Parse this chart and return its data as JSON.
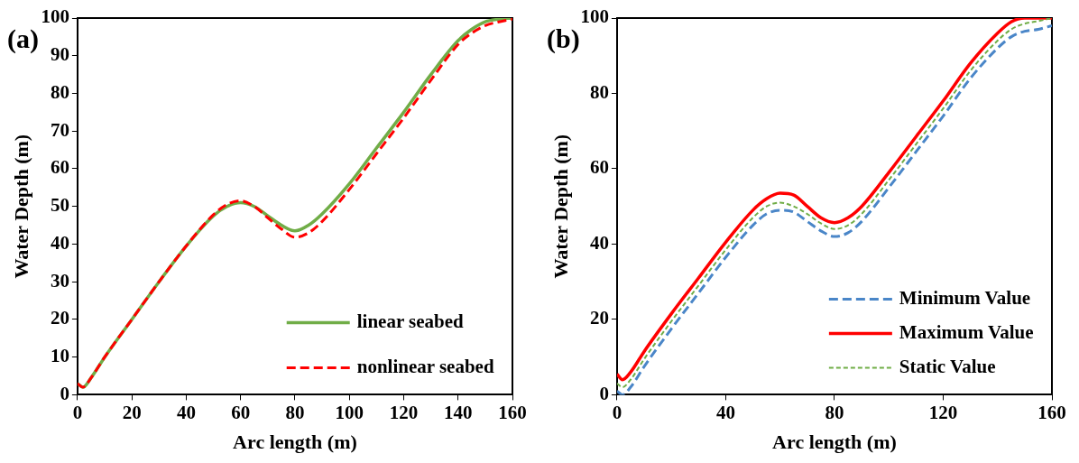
{
  "chart_data": [
    {
      "type": "line",
      "xlabel": "Arc length (m)",
      "ylabel": "Water Depth (m)",
      "annotations": [
        "(a)"
      ],
      "x": [
        0,
        2,
        5,
        10,
        20,
        30,
        40,
        50,
        55,
        60,
        65,
        70,
        75,
        80,
        85,
        90,
        100,
        110,
        120,
        130,
        140,
        145,
        150,
        155,
        160
      ],
      "xlim": [
        0,
        160
      ],
      "xticks": [
        0,
        20,
        40,
        60,
        80,
        100,
        120,
        140,
        160
      ],
      "ylim": [
        0,
        100
      ],
      "yticks": [
        0,
        10,
        20,
        30,
        40,
        50,
        60,
        70,
        80,
        90,
        100
      ],
      "grid": false,
      "legend": "bottom right",
      "marker": "none",
      "series": [
        {
          "name": "linear seabed",
          "color": "#70ad47",
          "line_style": "solid",
          "values": [
            3,
            2,
            4.5,
            10,
            20,
            30,
            39.5,
            47.5,
            50,
            51,
            50,
            47.5,
            45,
            43.5,
            45,
            48,
            56,
            65.5,
            75,
            85,
            94,
            97,
            99,
            99.7,
            100
          ]
        },
        {
          "name": "nonlinear seabed",
          "color": "#ff0000",
          "line_style": "dashed",
          "values": [
            3,
            2,
            4.5,
            10,
            20,
            30,
            39.5,
            47.8,
            50.5,
            51.5,
            50,
            47,
            44,
            41.8,
            43,
            46,
            54.5,
            64,
            73.5,
            83.5,
            93,
            96,
            98,
            99,
            99.7
          ]
        }
      ]
    },
    {
      "type": "line",
      "xlabel": "Arc length (m)",
      "ylabel": "Water Depth (m)",
      "annotations": [
        "(b)"
      ],
      "x": [
        0,
        2,
        5,
        10,
        20,
        30,
        40,
        50,
        55,
        60,
        65,
        70,
        75,
        80,
        85,
        90,
        100,
        110,
        120,
        130,
        140,
        145,
        150,
        155,
        160
      ],
      "xlim": [
        0,
        160
      ],
      "xticks": [
        0,
        40,
        80,
        120,
        160
      ],
      "ylim": [
        0,
        100
      ],
      "yticks": [
        0,
        20,
        40,
        60,
        80,
        100
      ],
      "grid": false,
      "legend": "bottom right",
      "marker": "none",
      "series": [
        {
          "name": "Minimum Value",
          "color": "#4a86c8",
          "line_style": "dashed",
          "values": [
            1,
            0,
            2,
            7.5,
            17.5,
            27,
            36.5,
            45,
            48,
            49,
            48.5,
            46,
            43.5,
            42,
            43,
            46,
            55,
            64.5,
            74,
            84,
            92,
            95,
            96.5,
            97,
            98
          ]
        },
        {
          "name": "Maximum Value",
          "color": "#ff0000",
          "line_style": "solid",
          "values": [
            5.5,
            4,
            6,
            11.5,
            21.5,
            31,
            40.5,
            49,
            52,
            53.5,
            53,
            50,
            47,
            45.7,
            47,
            50,
            59,
            68.5,
            78,
            88,
            96,
            99,
            100,
            100,
            100
          ]
        },
        {
          "name": "Static Value",
          "color": "#70ad47",
          "line_style": "dotted",
          "values": [
            3,
            2,
            4,
            9.5,
            19.5,
            29,
            38.5,
            47,
            50,
            51,
            50,
            48,
            45.5,
            44,
            45,
            48,
            57,
            66.5,
            76,
            86,
            94,
            97,
            98.5,
            99.2,
            100
          ]
        }
      ]
    }
  ]
}
